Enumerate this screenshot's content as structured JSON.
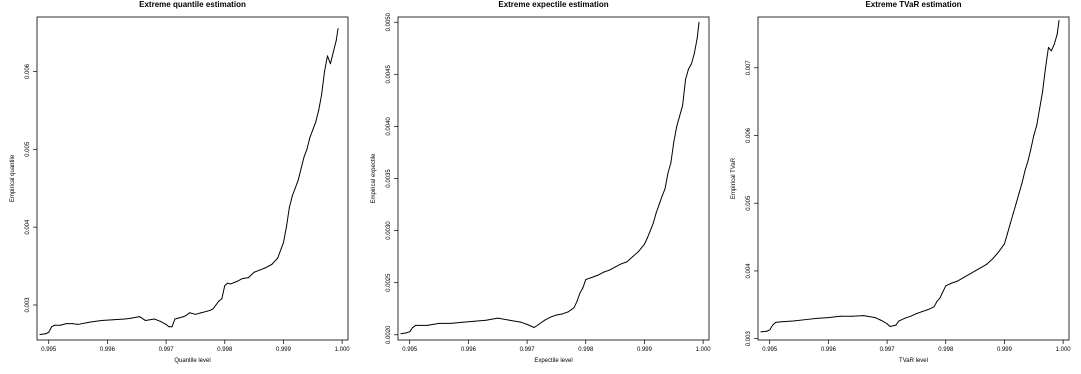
{
  "chart_data": [
    {
      "type": "line",
      "title": "Extreme quantile estimation",
      "xlabel": "Quantile level",
      "ylabel": "Empirical quantile",
      "xlim": [
        0.9948,
        1.0001
      ],
      "ylim": [
        0.00255,
        0.0067
      ],
      "xticks": [
        "0.995",
        "0.996",
        "0.997",
        "0.998",
        "0.999",
        "1.000"
      ],
      "yticks": [
        "0.003",
        "0.004",
        "0.005",
        "0.006"
      ],
      "xticks_values": [
        0.995,
        0.996,
        0.997,
        0.998,
        0.999,
        1.0
      ],
      "yticks_values": [
        0.003,
        0.004,
        0.005,
        0.006
      ],
      "grid": false,
      "series": [
        {
          "x": [
            0.99485,
            0.99495,
            0.995,
            0.99505,
            0.9951,
            0.9952,
            0.9953,
            0.9954,
            0.9955,
            0.9957,
            0.9959,
            0.9961,
            0.9963,
            0.9964,
            0.99655,
            0.99665,
            0.9968,
            0.9969,
            0.997,
            0.99705,
            0.9971,
            0.99715,
            0.9972,
            0.9973,
            0.99735,
            0.9974,
            0.9975,
            0.9976,
            0.9977,
            0.99775,
            0.9978,
            0.99785,
            0.9979,
            0.99795,
            0.998,
            0.99805,
            0.9981,
            0.9982,
            0.9983,
            0.9984,
            0.9985,
            0.9986,
            0.9987,
            0.9988,
            0.9989,
            0.999,
            0.99905,
            0.9991,
            0.99915,
            0.9992,
            0.99925,
            0.9993,
            0.99935,
            0.9994,
            0.99945,
            0.9995,
            0.99955,
            0.9996,
            0.99965,
            0.9997,
            0.99975,
            0.9998,
            0.99985,
            0.9999,
            0.99993
          ],
          "y": [
            0.00262,
            0.00263,
            0.00265,
            0.00272,
            0.00274,
            0.00274,
            0.00276,
            0.00276,
            0.00275,
            0.00278,
            0.0028,
            0.00281,
            0.00282,
            0.00283,
            0.00285,
            0.0028,
            0.00282,
            0.00279,
            0.00275,
            0.00272,
            0.00272,
            0.00282,
            0.00283,
            0.00285,
            0.00287,
            0.0029,
            0.00288,
            0.0029,
            0.00292,
            0.00293,
            0.00295,
            0.003,
            0.00305,
            0.00308,
            0.00325,
            0.00328,
            0.00327,
            0.0033,
            0.00334,
            0.00335,
            0.00342,
            0.00345,
            0.00348,
            0.00352,
            0.0036,
            0.0038,
            0.004,
            0.00425,
            0.0044,
            0.0045,
            0.0046,
            0.00475,
            0.0049,
            0.005,
            0.00515,
            0.00525,
            0.00535,
            0.0055,
            0.0057,
            0.006,
            0.0062,
            0.0061,
            0.00625,
            0.0064,
            0.00655
          ]
        }
      ]
    },
    {
      "type": "line",
      "title": "Extreme expectile estimation",
      "xlabel": "Expectile level",
      "ylabel": "Empirical expectile",
      "xlim": [
        0.9948,
        1.0001
      ],
      "ylim": [
        0.00195,
        0.00505
      ],
      "xticks": [
        "0.995",
        "0.996",
        "0.997",
        "0.998",
        "0.999",
        "1.000"
      ],
      "yticks": [
        "0.0020",
        "0.0025",
        "0.0030",
        "0.0035",
        "0.0040",
        "0.0045",
        "0.0050"
      ],
      "xticks_values": [
        0.995,
        0.996,
        0.997,
        0.998,
        0.999,
        1.0
      ],
      "yticks_values": [
        0.002,
        0.0025,
        0.003,
        0.0035,
        0.004,
        0.0045,
        0.005
      ],
      "grid": false,
      "series": [
        {
          "x": [
            0.99485,
            0.99495,
            0.995,
            0.99505,
            0.9951,
            0.9953,
            0.9955,
            0.9957,
            0.9959,
            0.9961,
            0.9963,
            0.9965,
            0.9967,
            0.9969,
            0.997,
            0.99712,
            0.9972,
            0.9973,
            0.9974,
            0.9975,
            0.9976,
            0.9977,
            0.9978,
            0.99785,
            0.9979,
            0.99795,
            0.998,
            0.9981,
            0.9982,
            0.9983,
            0.9984,
            0.9985,
            0.9986,
            0.9987,
            0.9988,
            0.9989,
            0.999,
            0.99905,
            0.9991,
            0.99915,
            0.9992,
            0.99925,
            0.9993,
            0.99935,
            0.9994,
            0.99945,
            0.9995,
            0.99955,
            0.9996,
            0.99965,
            0.9997,
            0.99975,
            0.9998,
            0.99985,
            0.9999,
            0.99993
          ],
          "y": [
            0.00201,
            0.00202,
            0.00203,
            0.00207,
            0.00209,
            0.00209,
            0.00211,
            0.00211,
            0.00212,
            0.00213,
            0.00214,
            0.00216,
            0.00214,
            0.00212,
            0.0021,
            0.00207,
            0.0021,
            0.00214,
            0.00217,
            0.00219,
            0.0022,
            0.00222,
            0.00226,
            0.00232,
            0.0024,
            0.00245,
            0.00253,
            0.00255,
            0.00257,
            0.0026,
            0.00262,
            0.00265,
            0.00268,
            0.0027,
            0.00275,
            0.0028,
            0.00287,
            0.00293,
            0.003,
            0.00307,
            0.00317,
            0.00325,
            0.00333,
            0.0034,
            0.00355,
            0.00365,
            0.00385,
            0.004,
            0.0041,
            0.0042,
            0.00445,
            0.00455,
            0.0046,
            0.0047,
            0.00485,
            0.005
          ]
        }
      ]
    },
    {
      "type": "line",
      "title": "Extreme TVaR estimation",
      "xlabel": "TVaR level",
      "ylabel": "Empirical TVaR",
      "xlim": [
        0.9948,
        1.0001
      ],
      "ylim": [
        0.00298,
        0.00775
      ],
      "xticks": [
        "0.995",
        "0.996",
        "0.997",
        "0.998",
        "0.999",
        "1.000"
      ],
      "yticks": [
        "0.003",
        "0.004",
        "0.005",
        "0.006",
        "0.007"
      ],
      "xticks_values": [
        0.995,
        0.996,
        0.997,
        0.998,
        0.999,
        1.0
      ],
      "yticks_values": [
        0.003,
        0.004,
        0.005,
        0.006,
        0.007
      ],
      "grid": false,
      "series": [
        {
          "x": [
            0.99485,
            0.99495,
            0.995,
            0.99505,
            0.9951,
            0.9952,
            0.9954,
            0.9956,
            0.9958,
            0.996,
            0.9962,
            0.9964,
            0.9966,
            0.9968,
            0.9969,
            0.997,
            0.99705,
            0.99715,
            0.9972,
            0.9973,
            0.9974,
            0.9975,
            0.9976,
            0.9977,
            0.9978,
            0.99785,
            0.9979,
            0.998,
            0.9981,
            0.9982,
            0.9983,
            0.9984,
            0.9985,
            0.9986,
            0.9987,
            0.9988,
            0.9989,
            0.999,
            0.99905,
            0.9991,
            0.99915,
            0.9992,
            0.99925,
            0.9993,
            0.99935,
            0.9994,
            0.99945,
            0.9995,
            0.99955,
            0.9996,
            0.99965,
            0.9997,
            0.99975,
            0.9998,
            0.99985,
            0.9999,
            0.99993
          ],
          "y": [
            0.0031,
            0.00311,
            0.00313,
            0.0032,
            0.00324,
            0.00325,
            0.00326,
            0.00328,
            0.0033,
            0.00331,
            0.00333,
            0.00333,
            0.00334,
            0.00331,
            0.00327,
            0.00322,
            0.00318,
            0.0032,
            0.00326,
            0.0033,
            0.00333,
            0.00337,
            0.0034,
            0.00343,
            0.00347,
            0.00355,
            0.0036,
            0.00378,
            0.00382,
            0.00385,
            0.0039,
            0.00395,
            0.004,
            0.00405,
            0.0041,
            0.00418,
            0.00428,
            0.0044,
            0.00455,
            0.0047,
            0.00485,
            0.005,
            0.00515,
            0.0053,
            0.00548,
            0.00562,
            0.0058,
            0.006,
            0.00615,
            0.0064,
            0.00665,
            0.007,
            0.0073,
            0.00725,
            0.00735,
            0.0075,
            0.0077
          ]
        }
      ]
    }
  ]
}
